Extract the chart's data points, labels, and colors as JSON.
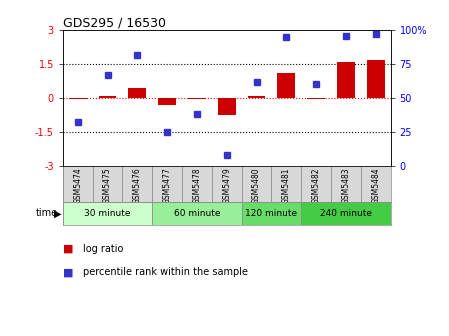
{
  "title": "GDS295 / 16530",
  "samples": [
    "GSM5474",
    "GSM5475",
    "GSM5476",
    "GSM5477",
    "GSM5478",
    "GSM5479",
    "GSM5480",
    "GSM5481",
    "GSM5482",
    "GSM5483",
    "GSM5484"
  ],
  "log_ratio": [
    -0.03,
    0.08,
    0.45,
    -0.3,
    -0.05,
    -0.75,
    0.08,
    1.1,
    -0.05,
    1.6,
    1.7
  ],
  "percentile": [
    32,
    67,
    82,
    25,
    38,
    8,
    62,
    95,
    60,
    96,
    97
  ],
  "ylim_left": [
    -3,
    3
  ],
  "ylim_right": [
    0,
    100
  ],
  "yticks_left": [
    -3,
    -1.5,
    0,
    1.5,
    3
  ],
  "yticks_right": [
    0,
    25,
    50,
    75,
    100
  ],
  "ytick_labels_right": [
    "0",
    "25",
    "50",
    "75",
    "100%"
  ],
  "dotted_lines_black": [
    -1.5,
    1.5
  ],
  "bar_color": "#cc0000",
  "dot_color": "#3333cc",
  "time_groups": [
    {
      "label": "30 minute",
      "start": 0,
      "end": 2,
      "color": "#ccffcc"
    },
    {
      "label": "60 minute",
      "start": 3,
      "end": 5,
      "color": "#99ee99"
    },
    {
      "label": "120 minute",
      "start": 6,
      "end": 7,
      "color": "#66dd66"
    },
    {
      "label": "240 minute",
      "start": 8,
      "end": 10,
      "color": "#44cc44"
    }
  ],
  "legend_bar_label": "log ratio",
  "legend_dot_label": "percentile rank within the sample",
  "background_color": "#ffffff",
  "cell_color": "#d8d8d8",
  "cell_border_color": "#888888"
}
